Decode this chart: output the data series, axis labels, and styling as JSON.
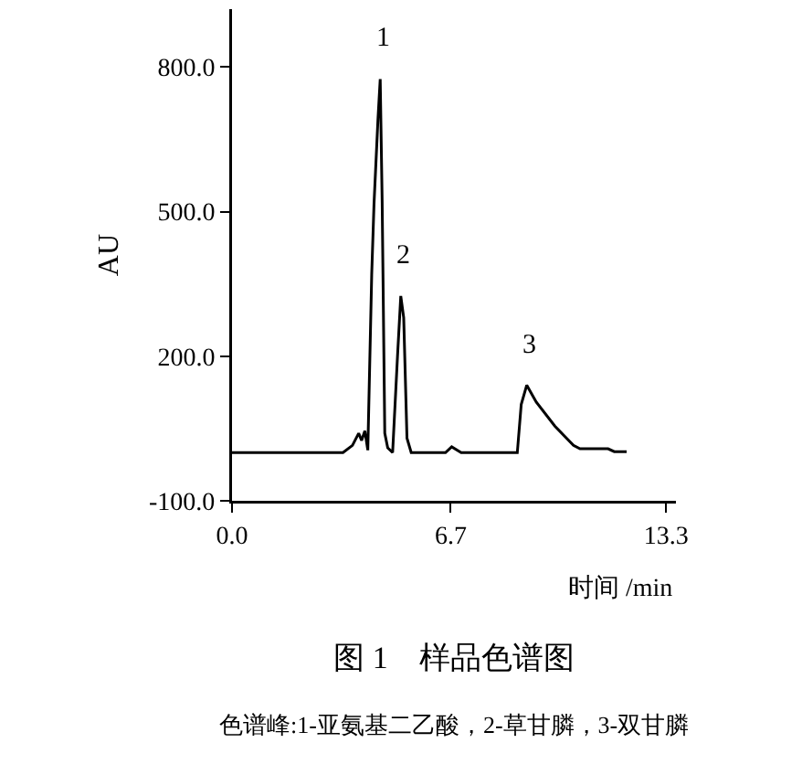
{
  "chart_data": {
    "type": "line",
    "title": "图 1　样品色谱图",
    "xlabel": "时间 /min",
    "ylabel": "AU",
    "x": [
      0,
      3.4,
      3.69,
      3.88,
      3.97,
      4.07,
      4.16,
      4.28,
      4.35,
      4.47,
      4.54,
      4.6,
      4.68,
      4.77,
      4.92,
      5.07,
      5.17,
      5.26,
      5.36,
      5.49,
      6.54,
      6.73,
      7.02,
      8.74,
      8.86,
      9.03,
      9.32,
      9.89,
      10.46,
      10.66,
      11.52,
      11.71,
      12.09
    ],
    "series": [
      {
        "color": "#000000",
        "values": [
          0,
          0,
          15,
          40,
          25,
          45,
          5,
          370,
          515,
          690,
          775,
          520,
          40,
          10,
          0,
          200,
          325,
          280,
          30,
          0,
          0,
          12,
          0,
          0,
          100,
          140,
          105,
          55,
          15,
          8,
          8,
          2,
          2
        ]
      }
    ],
    "xlim": [
      0,
      13.6
    ],
    "xticks": [
      {
        "value": 0,
        "label": "0.0"
      },
      {
        "value": 6.7,
        "label": "6.7"
      },
      {
        "value": 13.3,
        "label": "13.3"
      }
    ],
    "ylim": [
      -100,
      920
    ],
    "yticks": [
      {
        "value": -100,
        "label": "-100.0"
      },
      {
        "value": 200,
        "label": "200.0"
      },
      {
        "value": 500,
        "label": "500.0"
      },
      {
        "value": 800,
        "label": "800.0"
      }
    ],
    "grid": false,
    "marker": "none",
    "line_style": "solid",
    "annotations": [
      {
        "text": "1",
        "x": 4.54,
        "y": 775
      },
      {
        "text": "2",
        "x": 5.17,
        "y": 325
      },
      {
        "text": "3",
        "x": 9.03,
        "y": 140
      },
      "色谱峰:1-亚氨基二乙酸，2-草甘膦，3-双甘膦"
    ]
  }
}
